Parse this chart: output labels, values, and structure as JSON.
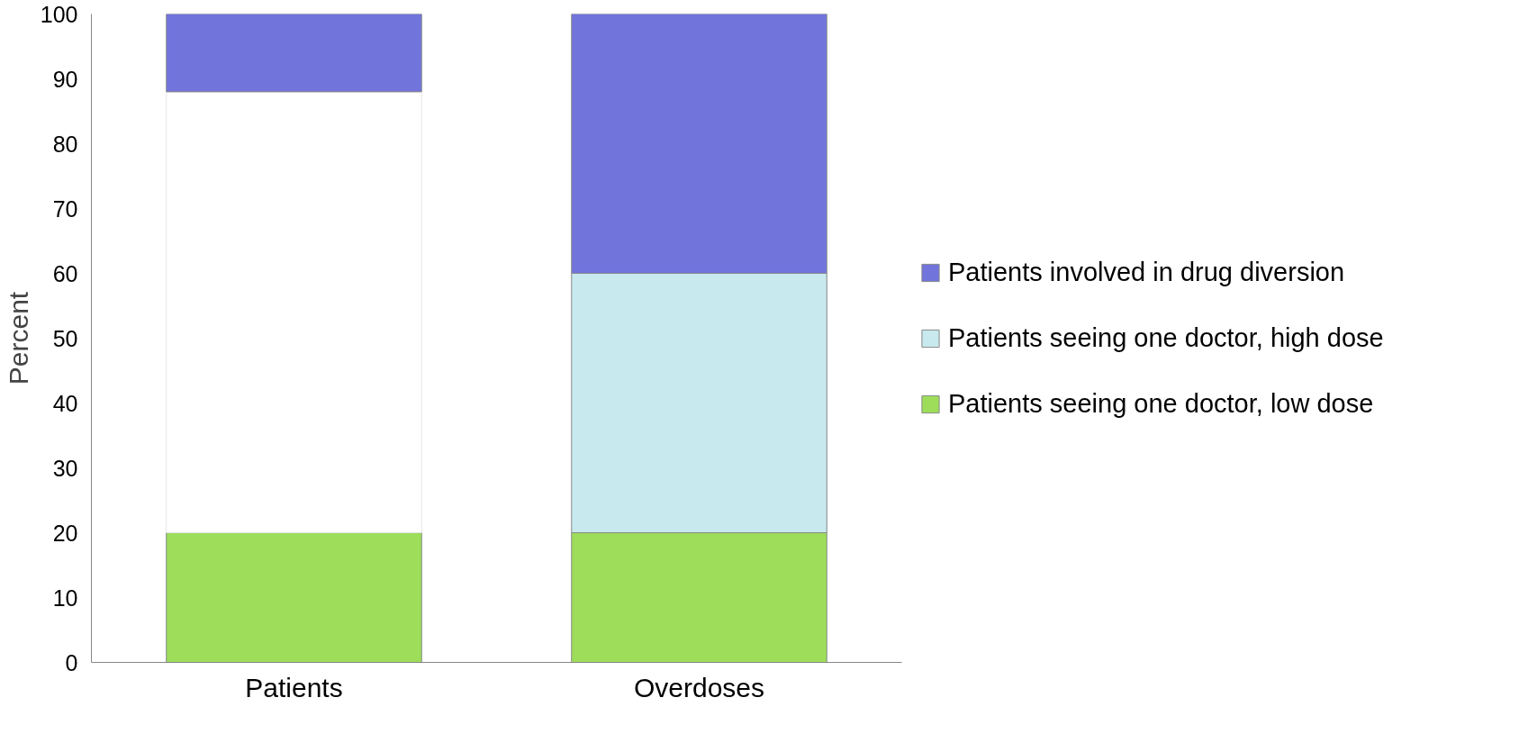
{
  "chart_data": {
    "type": "bar",
    "stacked": true,
    "ylabel": "Percent",
    "categories": [
      "Patients",
      "Overdoses"
    ],
    "series": [
      {
        "name": "Patients seeing one doctor, low dose",
        "color": "#9ddd5a",
        "values": [
          20,
          20
        ]
      },
      {
        "name": "Patients seeing one doctor, high dose",
        "color": "#c8e9ee",
        "colors": [
          "#ffffff",
          "#c8e9ee"
        ],
        "values": [
          68,
          40
        ]
      },
      {
        "name": "Patients involved in drug diversion",
        "color": "#7174db",
        "values": [
          12,
          40
        ]
      }
    ],
    "ylim": [
      0,
      100
    ],
    "yticks": [
      0,
      10,
      20,
      30,
      40,
      50,
      60,
      70,
      80,
      90,
      100
    ],
    "grid": false,
    "legend": "right"
  }
}
